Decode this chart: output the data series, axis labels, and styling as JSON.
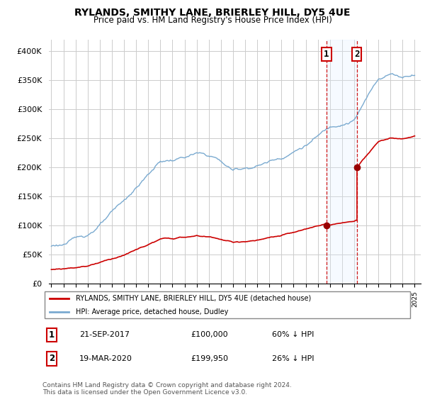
{
  "title": "RYLANDS, SMITHY LANE, BRIERLEY HILL, DY5 4UE",
  "subtitle": "Price paid vs. HM Land Registry's House Price Index (HPI)",
  "ylim": [
    0,
    420000
  ],
  "yticks": [
    0,
    50000,
    100000,
    150000,
    200000,
    250000,
    300000,
    350000,
    400000
  ],
  "grid_color": "#cccccc",
  "legend_label_red": "RYLANDS, SMITHY LANE, BRIERLEY HILL, DY5 4UE (detached house)",
  "legend_label_blue": "HPI: Average price, detached house, Dudley",
  "sale1_date": "21-SEP-2017",
  "sale1_price": 100000,
  "sale1_pct": "60% ↓ HPI",
  "sale2_date": "19-MAR-2020",
  "sale2_price": 199950,
  "sale2_pct": "26% ↓ HPI",
  "footnote": "Contains HM Land Registry data © Crown copyright and database right 2024.\nThis data is licensed under the Open Government Licence v3.0.",
  "sale1_year": 2017.72,
  "sale2_year": 2020.21,
  "box_color": "#cc0000",
  "hpi_color": "#7aaad0",
  "price_color": "#cc0000",
  "span_color": "#ddeeff",
  "marker_color": "#990000"
}
